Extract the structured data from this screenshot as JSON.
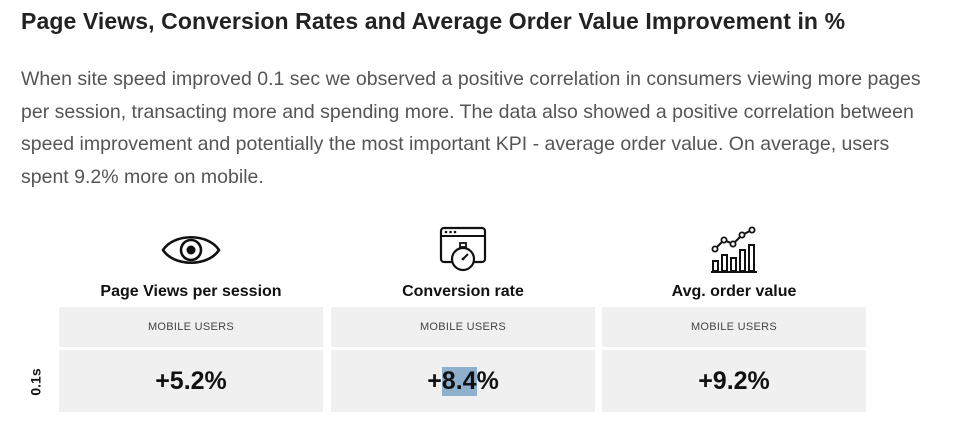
{
  "header": {
    "title": "Page Views, Conversion Rates and Average Order Value Improvement in %"
  },
  "intro": {
    "text": "When site speed improved 0.1 sec we observed a positive correlation in consumers viewing more pages per session, transacting more and spending more. The data also showed a positive correlation between speed improvement and potentially the most important KPI - average order value. On average, users spent 9.2% more on mobile."
  },
  "table": {
    "row_label": "0.1s",
    "columns": [
      {
        "icon": "eye-icon",
        "label": "Page Views per session",
        "sub_label": "MOBILE USERS",
        "value": "+5.2%"
      },
      {
        "icon": "browser-stopwatch-icon",
        "label": "Conversion rate",
        "sub_label": "MOBILE USERS",
        "value_prefix": "+",
        "value_highlight": "8.4",
        "value_suffix": "%"
      },
      {
        "icon": "growth-chart-icon",
        "label": "Avg. order value",
        "sub_label": "MOBILE USERS",
        "value": "+9.2%"
      }
    ]
  },
  "colors": {
    "text_dark": "#222222",
    "text_body": "#555555",
    "cell_bg": "#f0f0f0",
    "selection_highlight": "#8fb0cc"
  }
}
